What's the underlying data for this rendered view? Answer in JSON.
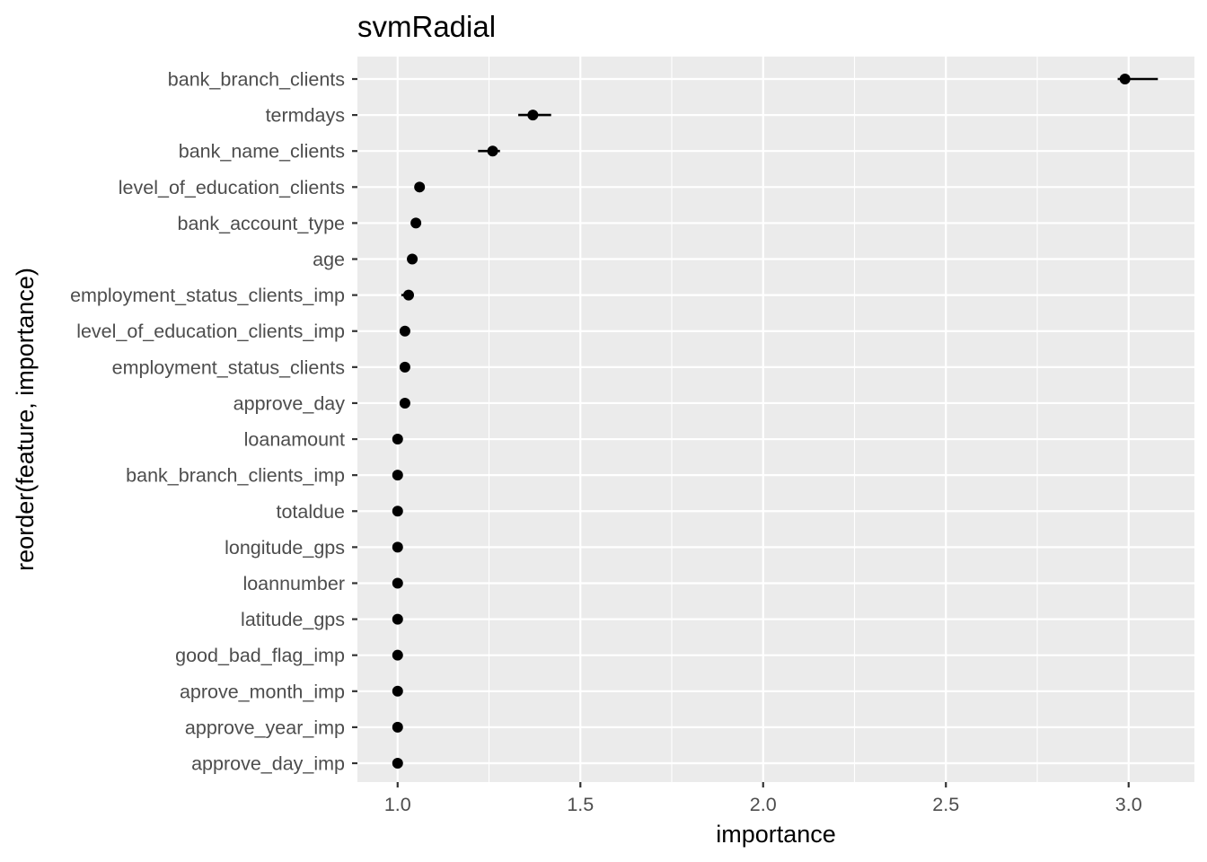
{
  "chart_data": {
    "type": "scatter",
    "subtype": "dot-with-range",
    "title": "svmRadial",
    "xlabel": "importance",
    "ylabel": "reorder(feature, importance)",
    "xlim": [
      0.89,
      3.18
    ],
    "xticks": [
      1.0,
      1.5,
      2.0,
      2.5,
      3.0
    ],
    "xtick_labels": [
      "1.0",
      "1.5",
      "2.0",
      "2.5",
      "3.0"
    ],
    "grid": true,
    "background": "#ebebeb",
    "point_color": "#000000",
    "features": [
      {
        "name": "bank_branch_clients",
        "importance": 2.99,
        "low": 2.97,
        "high": 3.08
      },
      {
        "name": "termdays",
        "importance": 1.37,
        "low": 1.33,
        "high": 1.42
      },
      {
        "name": "bank_name_clients",
        "importance": 1.26,
        "low": 1.22,
        "high": 1.28
      },
      {
        "name": "level_of_education_clients",
        "importance": 1.06,
        "low": 1.06,
        "high": 1.06
      },
      {
        "name": "bank_account_type",
        "importance": 1.05,
        "low": 1.05,
        "high": 1.05
      },
      {
        "name": "age",
        "importance": 1.04,
        "low": 1.03,
        "high": 1.05
      },
      {
        "name": "employment_status_clients_imp",
        "importance": 1.03,
        "low": 1.01,
        "high": 1.03
      },
      {
        "name": "level_of_education_clients_imp",
        "importance": 1.02,
        "low": 1.01,
        "high": 1.02
      },
      {
        "name": "employment_status_clients",
        "importance": 1.02,
        "low": 1.01,
        "high": 1.02
      },
      {
        "name": "approve_day",
        "importance": 1.02,
        "low": 1.01,
        "high": 1.02
      },
      {
        "name": "loanamount",
        "importance": 1.0,
        "low": 1.0,
        "high": 1.0
      },
      {
        "name": "bank_branch_clients_imp",
        "importance": 1.0,
        "low": 1.0,
        "high": 1.0
      },
      {
        "name": "totaldue",
        "importance": 1.0,
        "low": 1.0,
        "high": 1.0
      },
      {
        "name": "longitude_gps",
        "importance": 1.0,
        "low": 1.0,
        "high": 1.0
      },
      {
        "name": "loannumber",
        "importance": 1.0,
        "low": 1.0,
        "high": 1.0
      },
      {
        "name": "latitude_gps",
        "importance": 1.0,
        "low": 1.0,
        "high": 1.0
      },
      {
        "name": "good_bad_flag_imp",
        "importance": 1.0,
        "low": 1.0,
        "high": 1.0
      },
      {
        "name": "aprove_month_imp",
        "importance": 1.0,
        "low": 1.0,
        "high": 1.0
      },
      {
        "name": "approve_year_imp",
        "importance": 1.0,
        "low": 1.0,
        "high": 1.0
      },
      {
        "name": "approve_day_imp",
        "importance": 1.0,
        "low": 1.0,
        "high": 1.0
      }
    ]
  }
}
